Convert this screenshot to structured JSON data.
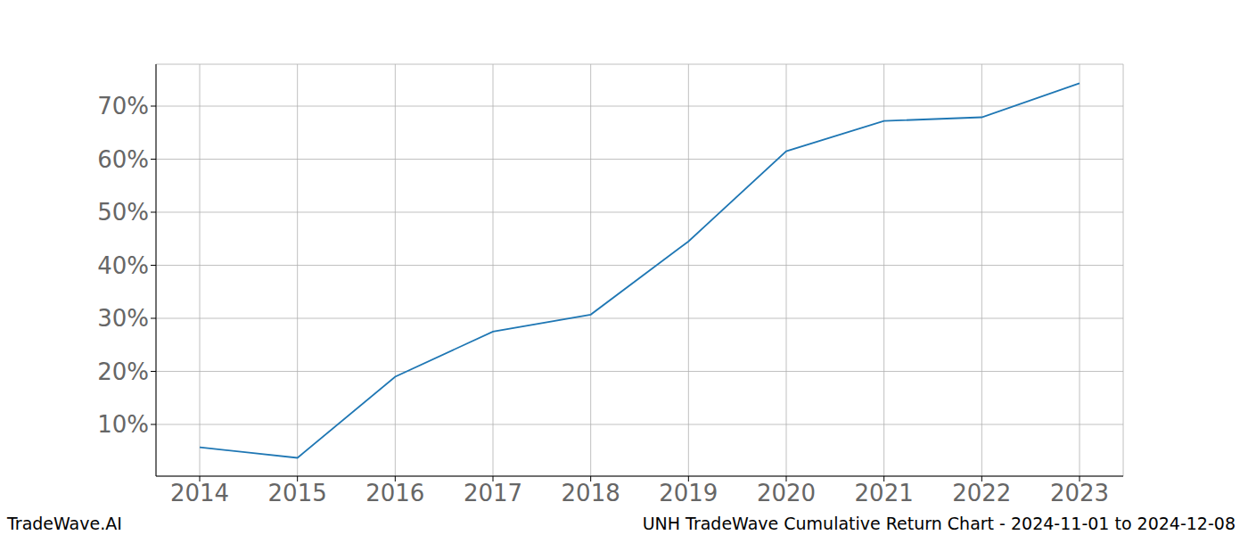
{
  "chart_data": {
    "type": "line",
    "title": "UNH TradeWave Cumulative Return Chart - 2024-11-01 to 2024-12-08",
    "annotations": [
      "TradeWave.AI"
    ],
    "x": [
      "2014",
      "2015",
      "2016",
      "2017",
      "2018",
      "2019",
      "2020",
      "2021",
      "2022",
      "2023"
    ],
    "values": [
      5.7,
      3.7,
      19.0,
      27.5,
      30.7,
      44.5,
      61.5,
      67.2,
      67.9,
      74.3
    ],
    "color": "#1f77b4",
    "ylim": [
      0.25,
      77.9
    ],
    "yticks": [
      {
        "value": 10,
        "label": "10%"
      },
      {
        "value": 20,
        "label": "20%"
      },
      {
        "value": 30,
        "label": "30%"
      },
      {
        "value": 40,
        "label": "40%"
      },
      {
        "value": 50,
        "label": "50%"
      },
      {
        "value": 60,
        "label": "60%"
      },
      {
        "value": 70,
        "label": "70%"
      }
    ],
    "grid": true
  }
}
